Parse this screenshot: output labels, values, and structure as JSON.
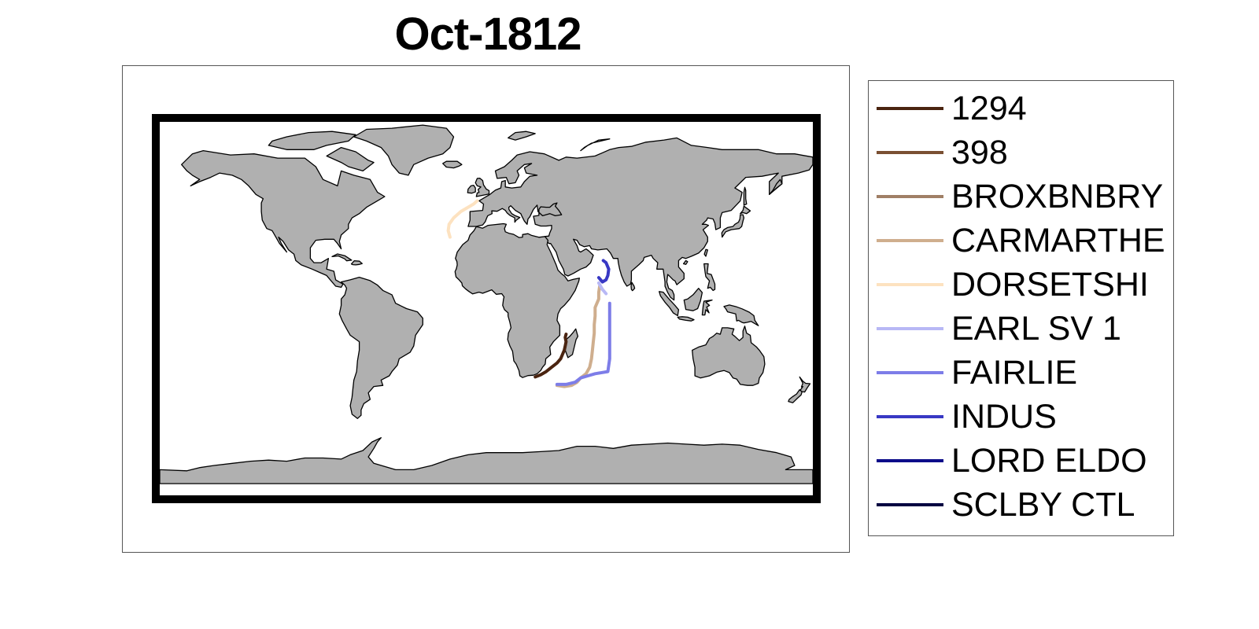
{
  "title": "Oct-1812",
  "map": {
    "land_color": "#b0b0b0",
    "ocean_color": "#ffffff",
    "frame_color": "#000000"
  },
  "legend": {
    "items": [
      {
        "label": "1294",
        "color": "#4a2410"
      },
      {
        "label": "398",
        "color": "#7a4f32"
      },
      {
        "label": "BROXBNBRY",
        "color": "#a07f66"
      },
      {
        "label": "CARMARTHE",
        "color": "#cfae8e"
      },
      {
        "label": "DORSETSHI",
        "color": "#fde2c0"
      },
      {
        "label": "EARL SV 1",
        "color": "#b8b8f5"
      },
      {
        "label": "FAIRLIE",
        "color": "#7d7de8"
      },
      {
        "label": "INDUS",
        "color": "#3838c4"
      },
      {
        "label": "LORD ELDO",
        "color": "#0c0c8a"
      },
      {
        "label": "SCLBY CTL",
        "color": "#000040"
      }
    ]
  },
  "tracks": [
    {
      "name": "1294",
      "color": "#4a2410",
      "points": [
        [
          27,
          -34.5
        ],
        [
          30,
          -33.5
        ],
        [
          33,
          -32
        ],
        [
          36,
          -30
        ],
        [
          39,
          -28
        ],
        [
          41,
          -26
        ],
        [
          42,
          -24
        ],
        [
          43,
          -22
        ],
        [
          43.5,
          -20
        ],
        [
          44,
          -18
        ],
        [
          43.5,
          -16
        ],
        [
          44,
          -14.5
        ]
      ]
    },
    {
      "name": "CARMARTHE",
      "color": "#cfae8e",
      "points": [
        [
          39,
          -38.5
        ],
        [
          43,
          -39
        ],
        [
          47,
          -38.5
        ],
        [
          50,
          -37
        ],
        [
          52,
          -35
        ],
        [
          55,
          -33
        ],
        [
          57,
          -30
        ],
        [
          58,
          -26
        ],
        [
          58.5,
          -22
        ],
        [
          59,
          -18
        ],
        [
          59.5,
          -14
        ],
        [
          59.5,
          -10
        ],
        [
          60,
          -6
        ],
        [
          60,
          -2
        ],
        [
          61,
          0
        ],
        [
          62,
          2
        ],
        [
          62,
          5
        ],
        [
          62.5,
          8
        ]
      ]
    },
    {
      "name": "DORSETSHI",
      "color": "#fde2c0",
      "points": [
        [
          -20,
          31
        ],
        [
          -21,
          34
        ],
        [
          -20.5,
          37
        ],
        [
          -18,
          40
        ],
        [
          -14,
          43
        ],
        [
          -10,
          45
        ],
        [
          -7,
          46.5
        ],
        [
          -5,
          48
        ]
      ]
    },
    {
      "name": "EARL SV 1",
      "color": "#b8b8f5",
      "points": [
        [
          62,
          9.5
        ],
        [
          64,
          6.5
        ],
        [
          66,
          4.5
        ]
      ]
    },
    {
      "name": "FAIRLIE",
      "color": "#7d7de8",
      "points": [
        [
          39,
          -38
        ],
        [
          44,
          -38
        ],
        [
          49,
          -37
        ],
        [
          52,
          -35
        ],
        [
          56,
          -34
        ],
        [
          60,
          -33
        ],
        [
          67,
          -32
        ],
        [
          68,
          -26
        ],
        [
          68,
          -18
        ],
        [
          68,
          -10
        ],
        [
          68,
          -5
        ],
        [
          68,
          0
        ]
      ]
    },
    {
      "name": "INDUS",
      "color": "#3838c4",
      "points": [
        [
          62,
          12
        ],
        [
          64,
          10
        ],
        [
          66,
          11
        ],
        [
          67,
          13
        ],
        [
          67.5,
          16
        ],
        [
          66,
          19
        ],
        [
          64.5,
          20
        ]
      ]
    }
  ]
}
